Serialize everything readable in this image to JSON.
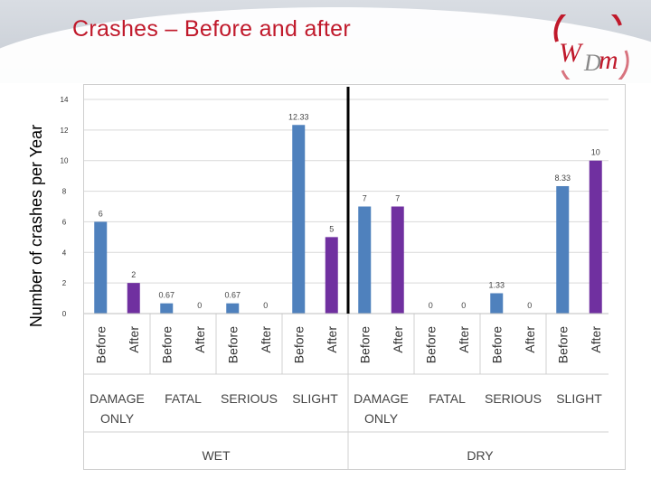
{
  "slide": {
    "title": "Crashes – Before and after"
  },
  "logo": {
    "text": "WDM",
    "icon": "wdm-logo"
  },
  "colors": {
    "before": "#4f81bd",
    "after": "#7030a0",
    "title": "#c0192b"
  },
  "chart_data": {
    "type": "bar",
    "ylabel": "Number of crashes per Year",
    "ylim": [
      0,
      14
    ],
    "yticks": [
      0,
      2,
      4,
      6,
      8,
      10,
      12,
      14
    ],
    "grid": true,
    "groups": [
      {
        "name": "WET",
        "categories": [
          {
            "name": "DAMAGE ONLY",
            "bars": [
              {
                "label": "Before",
                "value": 6,
                "data_label": "6"
              },
              {
                "label": "After",
                "value": 2,
                "data_label": "2"
              }
            ]
          },
          {
            "name": "FATAL",
            "bars": [
              {
                "label": "Before",
                "value": 0.67,
                "data_label": "0.67"
              },
              {
                "label": "After",
                "value": 0,
                "data_label": "0"
              }
            ]
          },
          {
            "name": "SERIOUS",
            "bars": [
              {
                "label": "Before",
                "value": 0.67,
                "data_label": "0.67"
              },
              {
                "label": "After",
                "value": 0,
                "data_label": "0"
              }
            ]
          },
          {
            "name": "SLIGHT",
            "bars": [
              {
                "label": "Before",
                "value": 12.33,
                "data_label": "12.33"
              },
              {
                "label": "After",
                "value": 5,
                "data_label": "5"
              }
            ]
          }
        ]
      },
      {
        "name": "DRY",
        "categories": [
          {
            "name": "DAMAGE ONLY",
            "bars": [
              {
                "label": "Before",
                "value": 7,
                "data_label": "7"
              },
              {
                "label": "After",
                "value": 7,
                "data_label": "7"
              }
            ]
          },
          {
            "name": "FATAL",
            "bars": [
              {
                "label": "Before",
                "value": 0,
                "data_label": "0"
              },
              {
                "label": "After",
                "value": 0,
                "data_label": "0"
              }
            ]
          },
          {
            "name": "SERIOUS",
            "bars": [
              {
                "label": "Before",
                "value": 1.33,
                "data_label": "1.33"
              },
              {
                "label": "After",
                "value": 0,
                "data_label": "0"
              }
            ]
          },
          {
            "name": "SLIGHT",
            "bars": [
              {
                "label": "Before",
                "value": 8.33,
                "data_label": "8.33"
              },
              {
                "label": "After",
                "value": 10,
                "data_label": "10"
              }
            ]
          }
        ]
      }
    ]
  }
}
